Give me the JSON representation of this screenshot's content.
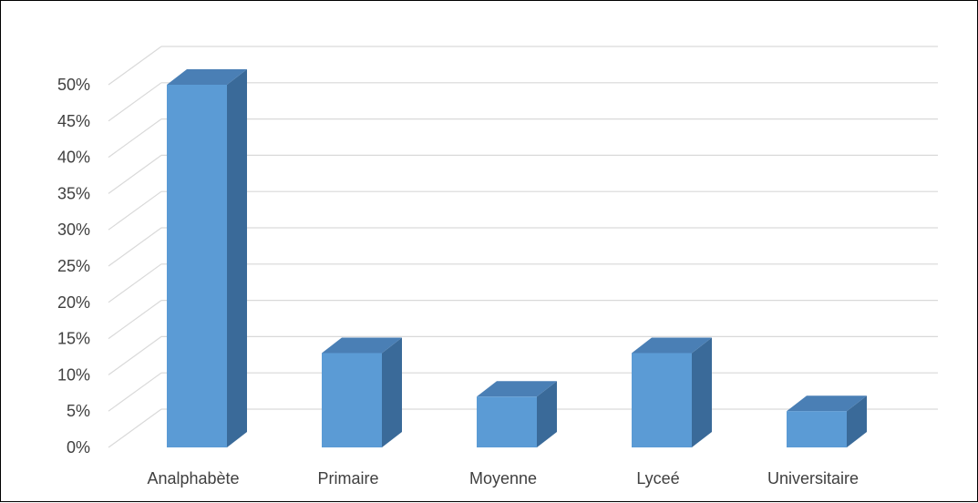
{
  "chart_data": {
    "type": "bar",
    "style": "3d-column",
    "categories": [
      "Analphabète",
      "Primaire",
      "Moyenne",
      "Lyceé",
      "Universitaire"
    ],
    "values": [
      50,
      13,
      7,
      13,
      5
    ],
    "value_unit": "%",
    "ylim": [
      0,
      50
    ],
    "ytick_step": 5,
    "yticks": [
      "0%",
      "5%",
      "10%",
      "15%",
      "20%",
      "25%",
      "30%",
      "35%",
      "40%",
      "45%",
      "50%"
    ],
    "grid": true,
    "legend": "none",
    "colors": {
      "bar_front": "#5B9BD5",
      "bar_top": "#4A7FB5",
      "bar_side": "#3A6A99",
      "grid": "#D9D9D9",
      "axis_text": "#404040"
    }
  }
}
